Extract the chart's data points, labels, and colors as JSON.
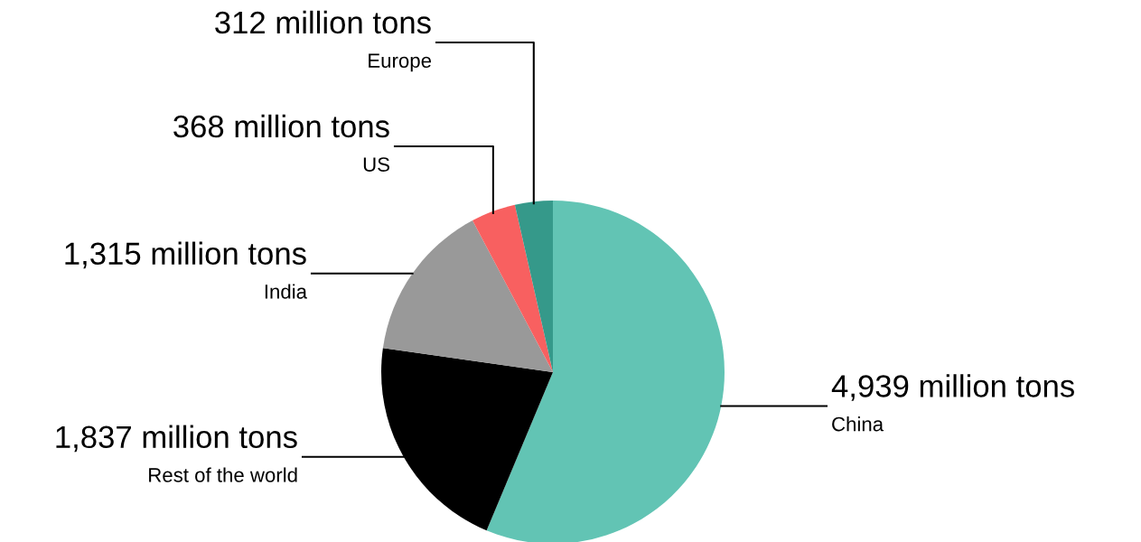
{
  "chart_data": {
    "type": "pie",
    "categories": [
      "China",
      "Rest of the world",
      "India",
      "US",
      "Europe"
    ],
    "values": [
      4939,
      1837,
      1315,
      368,
      312
    ],
    "value_labels": [
      "4,939 million tons",
      "1,837 million tons",
      "1,315 million tons",
      "368 million tons",
      "312 million tons"
    ],
    "colors": [
      "#62c4b4",
      "#000000",
      "#999999",
      "#f86060",
      "#35998a"
    ],
    "legend": false
  }
}
